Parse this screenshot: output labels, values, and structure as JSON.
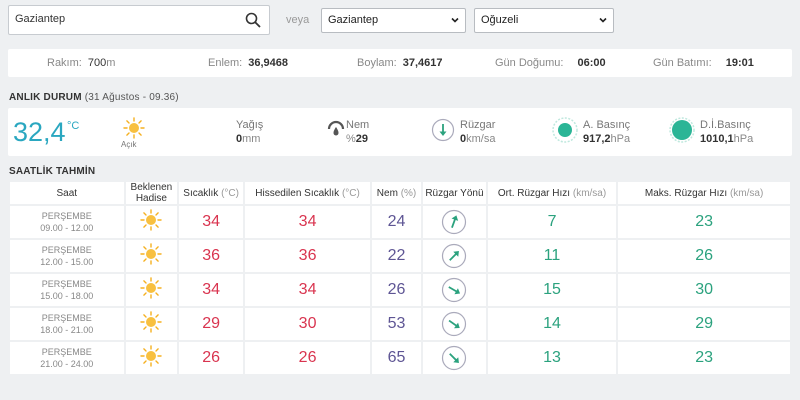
{
  "search": {
    "value": "Gaziantep",
    "veya": "veya"
  },
  "selects": {
    "city": "Gaziantep",
    "district": "Oğuzeli"
  },
  "location": {
    "rakim_label": "Rakım:",
    "rakim_value": "700",
    "rakim_unit": "m",
    "enlem_label": "Enlem:",
    "enlem_value": "36,9468",
    "boylam_label": "Boylam:",
    "boylam_value": "37,4617",
    "dogumu_label": "Gün Doğumu:",
    "dogumu_value": "06:00",
    "batimi_label": "Gün Batımı:",
    "batimi_value": "19:01"
  },
  "current": {
    "title": "ANLIK DURUM",
    "subtitle": "(31 Ağustos - 09.36)",
    "temp": "32,4",
    "temp_unit": "°C",
    "condition": "Açık",
    "rain_label": "Yağış",
    "rain_value": "0",
    "rain_unit": "mm",
    "humidity_label": "Nem",
    "humidity_prefix": "%",
    "humidity_value": "29",
    "wind_label": "Rüzgar",
    "wind_value": "0",
    "wind_unit": "km/sa",
    "pressure_label": "A. Basınç",
    "pressure_value": "917,2",
    "pressure_unit": "hPa",
    "sea_pressure_label": "D.İ.Basınç",
    "sea_pressure_value": "1010,1",
    "sea_pressure_unit": "hPa"
  },
  "forecast": {
    "title": "SAATLİK TAHMİN",
    "headers": {
      "saat": "Saat",
      "hadise_1": "Beklenen",
      "hadise_2": "Hadise",
      "sicaklik": "Sıcaklık",
      "sicaklik_unit": "(°C)",
      "hissedilen": "Hissedilen Sıcaklık",
      "hissedilen_unit": "(°C)",
      "nem": "Nem",
      "nem_unit": "(%)",
      "yon": "Rüzgar Yönü",
      "ort": "Ort. Rüzgar Hızı",
      "ort_unit": "(km/sa)",
      "maks": "Maks. Rüzgar Hızı",
      "maks_unit": "(km/sa)"
    },
    "rows": [
      {
        "day": "PERŞEMBE",
        "time": "09.00 - 12.00",
        "temp": "34",
        "feels": "34",
        "hum": "24",
        "wind_dir_deg": 20,
        "avg": "7",
        "max": "23"
      },
      {
        "day": "PERŞEMBE",
        "time": "12.00 - 15.00",
        "temp": "36",
        "feels": "36",
        "hum": "22",
        "wind_dir_deg": 45,
        "avg": "11",
        "max": "26"
      },
      {
        "day": "PERŞEMBE",
        "time": "15.00 - 18.00",
        "temp": "34",
        "feels": "34",
        "hum": "26",
        "wind_dir_deg": 120,
        "avg": "15",
        "max": "30"
      },
      {
        "day": "PERŞEMBE",
        "time": "18.00 - 21.00",
        "temp": "29",
        "feels": "30",
        "hum": "53",
        "wind_dir_deg": 125,
        "avg": "14",
        "max": "29"
      },
      {
        "day": "PERŞEMBE",
        "time": "21.00 - 24.00",
        "temp": "26",
        "feels": "26",
        "hum": "65",
        "wind_dir_deg": 135,
        "avg": "13",
        "max": "23"
      }
    ]
  },
  "colors": {
    "accent": "#2aa7c0",
    "temp_red": "#d9344f",
    "humidity_purple": "#5e5594",
    "wind_green": "#2ba27e",
    "sun_yellow": "#f5b020"
  }
}
